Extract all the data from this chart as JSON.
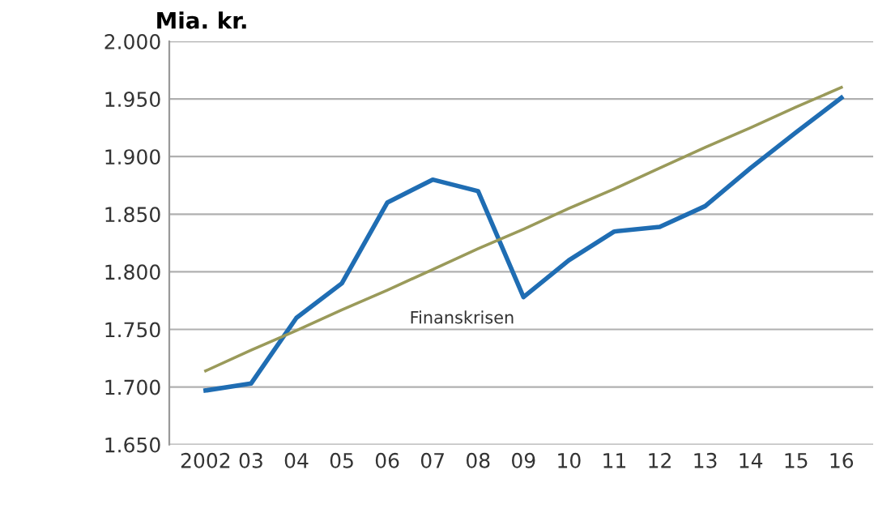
{
  "chart_data": {
    "type": "line",
    "ylabel": "Mia. kr.",
    "categories": [
      "2002",
      "03",
      "04",
      "05",
      "06",
      "07",
      "08",
      "09",
      "10",
      "11",
      "12",
      "13",
      "14",
      "15",
      "16"
    ],
    "series": [
      {
        "color": "#1f6db3",
        "values": [
          1697,
          1703,
          1760,
          1790,
          1860,
          1880,
          1870,
          1778,
          1810,
          1835,
          1839,
          1857,
          1890,
          1921,
          1951
        ]
      },
      {
        "color": "#9a9a5a",
        "values": [
          1714,
          1732,
          1749,
          1767,
          1784,
          1802,
          1820,
          1837,
          1855,
          1872,
          1890,
          1908,
          1925,
          1943,
          1960
        ]
      }
    ],
    "ylim": [
      1650,
      2000
    ],
    "yticks": [
      {
        "value": 1650,
        "label": "1.650"
      },
      {
        "value": 1700,
        "label": "1.700"
      },
      {
        "value": 1750,
        "label": "1.750"
      },
      {
        "value": 1800,
        "label": "1.800"
      },
      {
        "value": 1850,
        "label": "1.850"
      },
      {
        "value": 1900,
        "label": "1.900"
      },
      {
        "value": 1950,
        "label": "1.950"
      },
      {
        "value": 2000,
        "label": "2.000"
      }
    ],
    "grid": "y",
    "legend": false,
    "marker": "none",
    "line_style": "solid",
    "annotations": [
      {
        "text": "Finanskrisen",
        "x": "09",
        "y": 1778
      }
    ]
  }
}
